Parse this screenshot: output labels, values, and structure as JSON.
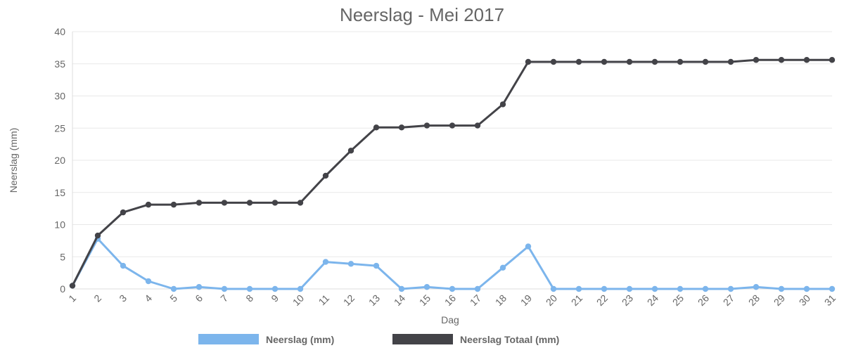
{
  "chart_data": {
    "type": "line",
    "title": "Neerslag - Mei 2017",
    "xlabel": "Dag",
    "ylabel": "Neerslag (mm)",
    "ylim": [
      0,
      40
    ],
    "yticks": [
      0,
      5,
      10,
      15,
      20,
      25,
      30,
      35,
      40
    ],
    "grid": true,
    "legend_position": "bottom",
    "categories": [
      "1",
      "2",
      "3",
      "4",
      "5",
      "6",
      "7",
      "8",
      "9",
      "10",
      "11",
      "12",
      "13",
      "14",
      "15",
      "16",
      "17",
      "18",
      "19",
      "20",
      "21",
      "22",
      "23",
      "24",
      "25",
      "26",
      "27",
      "28",
      "29",
      "30",
      "31"
    ],
    "series": [
      {
        "name": "Neerslag (mm)",
        "color": "#7cb5ec",
        "values": [
          0.5,
          7.8,
          3.6,
          1.2,
          0.0,
          0.3,
          0.0,
          0.0,
          0.0,
          0.0,
          4.2,
          3.9,
          3.6,
          0.0,
          0.3,
          0.0,
          0.0,
          3.3,
          6.6,
          0.0,
          0.0,
          0.0,
          0.0,
          0.0,
          0.0,
          0.0,
          0.0,
          0.3,
          0.0,
          0.0,
          0.0
        ]
      },
      {
        "name": "Neerslag Totaal (mm)",
        "color": "#434348",
        "values": [
          0.5,
          8.3,
          11.9,
          13.1,
          13.1,
          13.4,
          13.4,
          13.4,
          13.4,
          13.4,
          17.6,
          21.5,
          25.1,
          25.1,
          25.4,
          25.4,
          25.4,
          28.7,
          35.3,
          35.3,
          35.3,
          35.3,
          35.3,
          35.3,
          35.3,
          35.3,
          35.3,
          35.6,
          35.6,
          35.6,
          35.6
        ]
      }
    ]
  }
}
